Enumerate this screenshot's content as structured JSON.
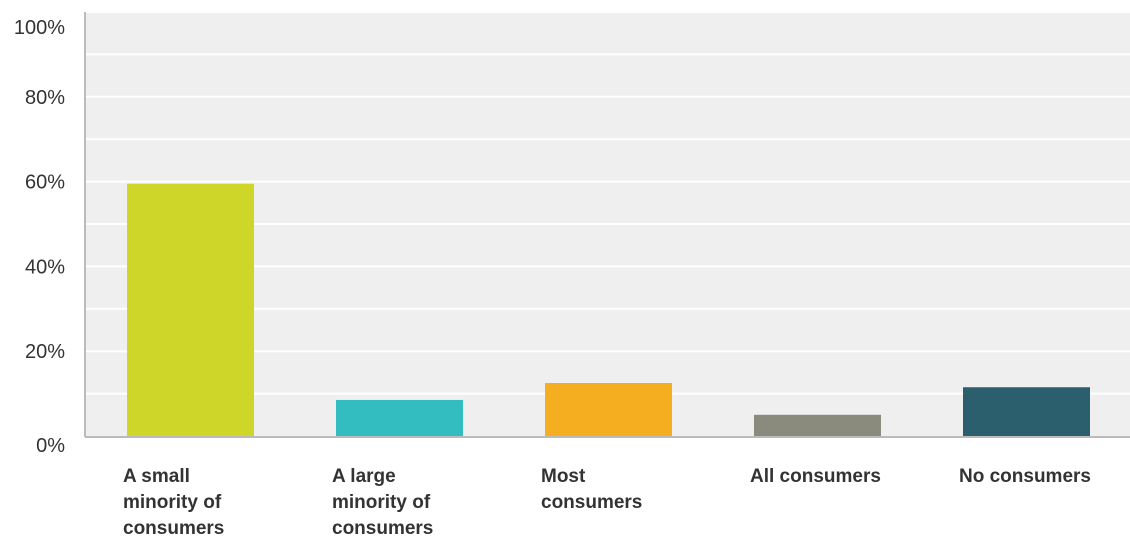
{
  "chart_data": {
    "type": "bar",
    "categories": [
      "A small minority of consumers",
      "A large minority of consumers",
      "Most consumers",
      "All consumers",
      "No consumers"
    ],
    "category_lines": [
      [
        "A small",
        "minority of",
        "consumers"
      ],
      [
        "A large",
        "minority of",
        "consumers"
      ],
      [
        "Most",
        "consumers"
      ],
      [
        "All consumers"
      ],
      [
        "No consumers"
      ]
    ],
    "values": [
      59.5,
      8.5,
      12.5,
      5,
      11.5
    ],
    "colors": [
      "#cfd62a",
      "#33bdc0",
      "#f5ae1f",
      "#8a8b7c",
      "#2c5f6e"
    ],
    "yticks": [
      "0%",
      "20%",
      "40%",
      "60%",
      "80%",
      "100%"
    ],
    "ylim": [
      0,
      100
    ],
    "grid": true,
    "plot_background": "#efefef",
    "grid_color": "#ffffff",
    "title": "",
    "xlabel": "",
    "ylabel": ""
  }
}
